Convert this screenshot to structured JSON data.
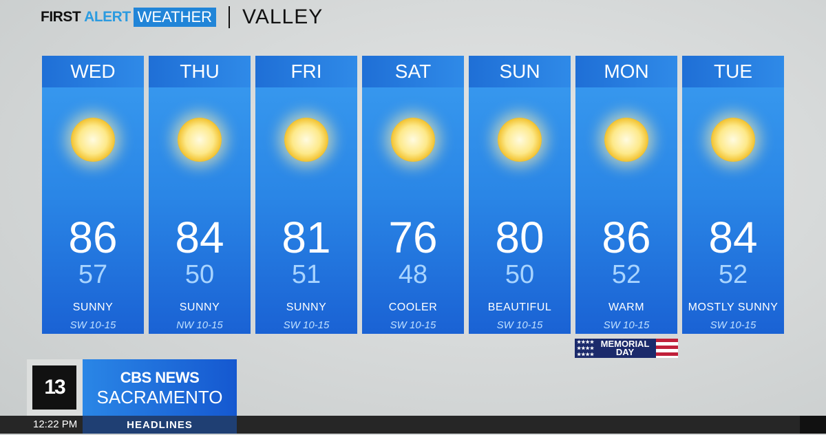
{
  "header": {
    "brand_first": "FIRST",
    "brand_alert": "ALERT",
    "brand_weather": "WEATHER",
    "region": "VALLEY"
  },
  "days": [
    {
      "day": "WED",
      "high": "86",
      "low": "57",
      "condition": "SUNNY",
      "wind": "SW 10-15",
      "icon": "sun-icon"
    },
    {
      "day": "THU",
      "high": "84",
      "low": "50",
      "condition": "SUNNY",
      "wind": "NW 10-15",
      "icon": "sun-icon"
    },
    {
      "day": "FRI",
      "high": "81",
      "low": "51",
      "condition": "SUNNY",
      "wind": "SW 10-15",
      "icon": "sun-icon"
    },
    {
      "day": "SAT",
      "high": "76",
      "low": "48",
      "condition": "COOLER",
      "wind": "SW 10-15",
      "icon": "sun-icon"
    },
    {
      "day": "SUN",
      "high": "80",
      "low": "50",
      "condition": "BEAUTIFUL",
      "wind": "SW 10-15",
      "icon": "sun-icon"
    },
    {
      "day": "MON",
      "high": "86",
      "low": "52",
      "condition": "WARM",
      "wind": "SW 10-15",
      "icon": "sun-icon"
    },
    {
      "day": "TUE",
      "high": "84",
      "low": "52",
      "condition": "MOSTLY SUNNY",
      "wind": "SW 10-15",
      "icon": "sun-icon"
    }
  ],
  "holiday": {
    "line1": "MEMORIAL",
    "line2": "DAY",
    "stars": "★★★★ ★★★★ ★★★★"
  },
  "station": {
    "channel": "13",
    "network": "CBS NEWS",
    "city": "SACRAMENTO"
  },
  "ticker": {
    "time": "12:22 PM",
    "section": "HEADLINES"
  },
  "colors": {
    "accent": "#2185d8",
    "card": "#2a86e6",
    "low_temp": "#a8d4ff"
  }
}
